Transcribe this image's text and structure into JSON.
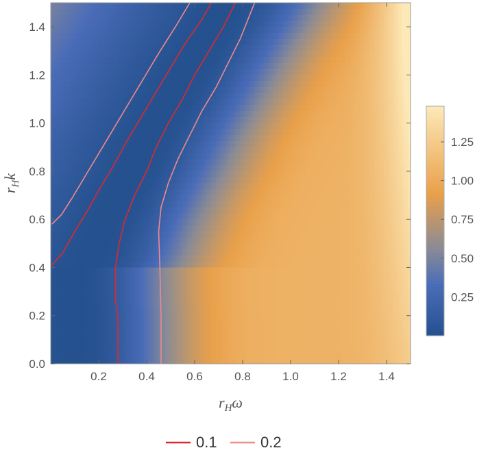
{
  "chart_data": {
    "type": "heatmap",
    "title": "",
    "xlabel": {
      "base": "r",
      "sub": "H",
      "main": "ω"
    },
    "ylabel": {
      "base": "r",
      "sub": "H",
      "main": "k"
    },
    "xlim": [
      0.0,
      1.5
    ],
    "ylim": [
      0.0,
      1.5
    ],
    "x_ticks": [
      0.2,
      0.4,
      0.6,
      0.8,
      1.0,
      1.2,
      1.4
    ],
    "x_tick_labels": [
      "0.2",
      "0.4",
      "0.6",
      "0.8",
      "1.0",
      "1.2",
      "1.4"
    ],
    "y_ticks": [
      0.0,
      0.2,
      0.4,
      0.6,
      0.8,
      1.0,
      1.2,
      1.4
    ],
    "y_tick_labels": [
      "0.0",
      "0.2",
      "0.4",
      "0.6",
      "0.8",
      "1.0",
      "1.2",
      "1.4"
    ],
    "colorbar": {
      "range": [
        0.0,
        1.48
      ],
      "ticks": [
        0.25,
        0.5,
        0.75,
        1.0,
        1.25
      ],
      "tick_labels": [
        "0.25",
        "0.50",
        "0.75",
        "1.00",
        "1.25"
      ],
      "colors": [
        "#25518f",
        "#4a6cb8",
        "#8a8b95",
        "#e9a04a",
        "#fde9b8"
      ],
      "color_stops": [
        0.0,
        0.22,
        0.38,
        0.62,
        1.0
      ]
    },
    "grid": false,
    "legend_placement": "bottom-center",
    "contours": [
      {
        "name": "0.1",
        "color": "#e0282c",
        "curves": [
          [
            [
              0.28,
              0.0
            ],
            [
              0.28,
              0.2
            ],
            [
              0.27,
              0.26
            ],
            [
              0.27,
              0.4
            ],
            [
              0.285,
              0.5
            ],
            [
              0.31,
              0.6
            ],
            [
              0.35,
              0.7
            ],
            [
              0.4,
              0.8
            ],
            [
              0.44,
              0.9
            ],
            [
              0.49,
              1.0
            ],
            [
              0.55,
              1.1
            ],
            [
              0.6,
              1.2
            ],
            [
              0.66,
              1.3
            ],
            [
              0.72,
              1.4
            ],
            [
              0.77,
              1.5
            ]
          ],
          [
            [
              0.005,
              0.41
            ],
            [
              0.05,
              0.46
            ],
            [
              0.1,
              0.55
            ],
            [
              0.15,
              0.63
            ],
            [
              0.2,
              0.72
            ],
            [
              0.26,
              0.82
            ],
            [
              0.32,
              0.93
            ],
            [
              0.38,
              1.03
            ],
            [
              0.44,
              1.13
            ],
            [
              0.5,
              1.23
            ],
            [
              0.56,
              1.33
            ],
            [
              0.63,
              1.43
            ],
            [
              0.67,
              1.5
            ]
          ]
        ]
      },
      {
        "name": "0.2",
        "color": "#f08a8c",
        "curves": [
          [
            [
              0.46,
              0.0
            ],
            [
              0.46,
              0.2
            ],
            [
              0.455,
              0.4
            ],
            [
              0.45,
              0.55
            ],
            [
              0.46,
              0.65
            ],
            [
              0.49,
              0.75
            ],
            [
              0.53,
              0.85
            ],
            [
              0.58,
              0.95
            ],
            [
              0.63,
              1.05
            ],
            [
              0.69,
              1.15
            ],
            [
              0.74,
              1.25
            ],
            [
              0.79,
              1.35
            ],
            [
              0.83,
              1.45
            ],
            [
              0.85,
              1.5
            ]
          ],
          [
            [
              0.005,
              0.58
            ],
            [
              0.045,
              0.62
            ],
            [
              0.09,
              0.69
            ],
            [
              0.15,
              0.79
            ],
            [
              0.21,
              0.89
            ],
            [
              0.27,
              0.99
            ],
            [
              0.33,
              1.09
            ],
            [
              0.39,
              1.19
            ],
            [
              0.45,
              1.29
            ],
            [
              0.52,
              1.4
            ],
            [
              0.58,
              1.5
            ]
          ]
        ]
      }
    ]
  }
}
